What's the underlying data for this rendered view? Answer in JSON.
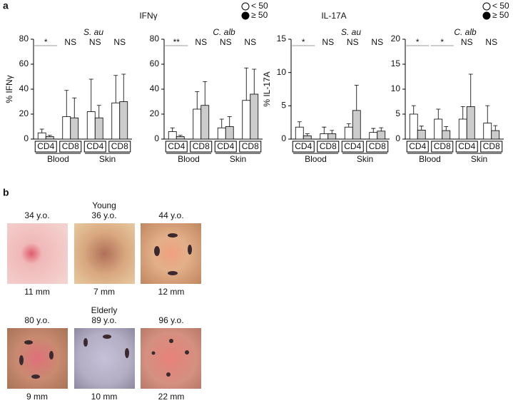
{
  "panel_a": {
    "label": "a",
    "headers": [
      "IFNγ",
      "IL-17A"
    ]
  },
  "chart_data": [
    {
      "type": "bar",
      "title": "S. au",
      "ylabel": "% IFNγ",
      "categories": [
        "CD4",
        "CD8",
        "CD4",
        "CD8"
      ],
      "category_colors": [
        "#d2691e",
        "#3a64a8",
        "#d2691e",
        "#3a64a8"
      ],
      "groups": [
        "Blood",
        "Skin"
      ],
      "annotations": [
        "*",
        "NS",
        "NS",
        "NS"
      ],
      "series": [
        {
          "name": "< 50",
          "color": "#ffffff",
          "point_color": "#ffffff",
          "values": [
            5,
            18,
            22,
            29
          ],
          "errors": [
            3,
            21,
            26,
            22
          ]
        },
        {
          "name": "≥ 50",
          "color": "#cccccc",
          "point_color": "#000000",
          "values": [
            2,
            17,
            17,
            30
          ],
          "errors": [
            1,
            16,
            10,
            22
          ]
        }
      ],
      "ylim": [
        0,
        80
      ],
      "yticks": [
        0,
        20,
        40,
        60,
        80
      ]
    },
    {
      "type": "bar",
      "title": "C. alb",
      "categories": [
        "CD4",
        "CD8",
        "CD4",
        "CD8"
      ],
      "category_colors": [
        "#d2691e",
        "#3a64a8",
        "#d2691e",
        "#3a64a8"
      ],
      "groups": [
        "Blood",
        "Skin"
      ],
      "annotations": [
        "**",
        "NS",
        "NS",
        "NS"
      ],
      "series": [
        {
          "name": "< 50",
          "color": "#ffffff",
          "point_color": "#ffffff",
          "values": [
            6,
            24,
            9,
            31
          ],
          "errors": [
            3,
            14,
            7,
            26
          ]
        },
        {
          "name": "≥ 50",
          "color": "#cccccc",
          "point_color": "#000000",
          "values": [
            2,
            27,
            10,
            36
          ],
          "errors": [
            1,
            19,
            8,
            20
          ]
        }
      ],
      "ylim": [
        0,
        80
      ],
      "yticks": [
        0,
        20,
        40,
        60,
        80
      ]
    },
    {
      "type": "bar",
      "title": "S. au",
      "ylabel": "% IL-17A",
      "categories": [
        "CD4",
        "CD8",
        "CD4",
        "CD8"
      ],
      "category_colors": [
        "#d2691e",
        "#3a64a8",
        "#d2691e",
        "#3a64a8"
      ],
      "groups": [
        "Blood",
        "Skin"
      ],
      "annotations": [
        "*",
        "NS",
        "NS",
        "NS"
      ],
      "series": [
        {
          "name": "< 50",
          "color": "#ffffff",
          "point_color": "#ffffff",
          "values": [
            1.8,
            0.8,
            1.8,
            1.0
          ],
          "errors": [
            0.8,
            1,
            0.5,
            0.6
          ]
        },
        {
          "name": "≥ 50",
          "color": "#cccccc",
          "point_color": "#000000",
          "values": [
            0.5,
            0.8,
            4.3,
            1.2
          ],
          "errors": [
            0.3,
            0.5,
            3.8,
            0.5
          ]
        }
      ],
      "ylim": [
        0,
        15
      ],
      "yticks": [
        0,
        5,
        10,
        15
      ]
    },
    {
      "type": "bar",
      "title": "C. alb",
      "categories": [
        "CD4",
        "CD8",
        "CD4",
        "CD8"
      ],
      "category_colors": [
        "#d2691e",
        "#3a64a8",
        "#d2691e",
        "#3a64a8"
      ],
      "groups": [
        "Blood",
        "Skin"
      ],
      "annotations": [
        "*",
        "*",
        "NS",
        "NS"
      ],
      "series": [
        {
          "name": "< 50",
          "color": "#ffffff",
          "point_color": "#ffffff",
          "values": [
            5,
            4,
            4,
            3.2
          ],
          "errors": [
            1.7,
            2,
            2.5,
            3.5
          ]
        },
        {
          "name": "≥ 50",
          "color": "#cccccc",
          "point_color": "#000000",
          "values": [
            1.8,
            1.7,
            6.5,
            1.7
          ],
          "errors": [
            0.8,
            0.8,
            6.5,
            1
          ]
        }
      ],
      "ylim": [
        0,
        20
      ],
      "yticks": [
        0,
        5,
        10,
        15,
        20
      ]
    }
  ],
  "panel_b": {
    "label": "b",
    "rows": [
      {
        "group": "Young",
        "photos": [
          {
            "age": "34 y.o.",
            "size": "11 mm"
          },
          {
            "age": "36 y.o.",
            "size": "7 mm"
          },
          {
            "age": "44 y.o.",
            "size": "12 mm"
          }
        ]
      },
      {
        "group": "Elderly",
        "photos": [
          {
            "age": "80 y.o.",
            "size": "9 mm"
          },
          {
            "age": "89 y.o.",
            "size": "10 mm"
          },
          {
            "age": "96 y.o.",
            "size": "22 mm"
          }
        ]
      }
    ]
  }
}
